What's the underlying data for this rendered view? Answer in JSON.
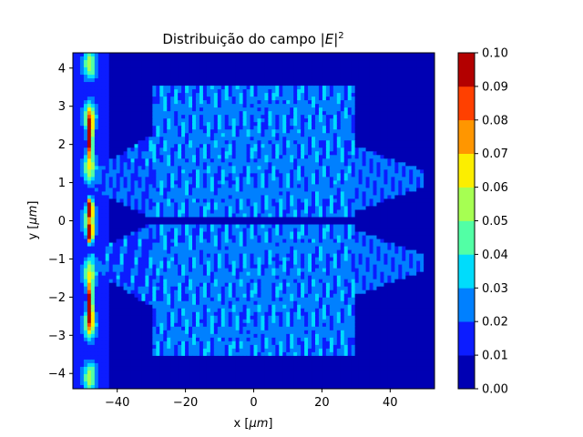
{
  "chart_data": {
    "type": "heatmap",
    "title": "Distribuição do campo |E|²",
    "title_main": "Distribuição do campo ",
    "title_var": "E",
    "title_exp": "2",
    "xlabel": "x [μm]",
    "xlabel_main": "x [",
    "xlabel_unit": "μm",
    "xlabel_close": "]",
    "ylabel": "y [μm]",
    "ylabel_main": "y [",
    "ylabel_unit": "μm",
    "ylabel_close": "]",
    "xlim": [
      -53,
      53
    ],
    "ylim": [
      -4.4,
      4.4
    ],
    "x_ticks": [
      -40,
      -20,
      0,
      20,
      40
    ],
    "x_tick_labels": [
      "−40",
      "−20",
      "0",
      "20",
      "40"
    ],
    "y_ticks": [
      -4,
      -3,
      -2,
      -1,
      0,
      1,
      2,
      3,
      4
    ],
    "y_tick_labels": [
      "−4",
      "−3",
      "−2",
      "−1",
      "0",
      "1",
      "2",
      "3",
      "4"
    ],
    "colorbar": {
      "vmin": 0.0,
      "vmax": 0.1,
      "levels": [
        0.0,
        0.01,
        0.02,
        0.03,
        0.04,
        0.05,
        0.06,
        0.07,
        0.08,
        0.09,
        0.1
      ],
      "tick_labels": [
        "0.00",
        "0.01",
        "0.02",
        "0.03",
        "0.04",
        "0.05",
        "0.06",
        "0.07",
        "0.08",
        "0.09",
        "0.10"
      ],
      "colormap": "jet",
      "colors": [
        "#0000b3",
        "#0c1cff",
        "#0080ff",
        "#00dcfc",
        "#52ffa5",
        "#a6ff52",
        "#fcee00",
        "#ff9600",
        "#ff4000",
        "#b30000"
      ]
    },
    "field_structures": {
      "source_column_x": -48,
      "waveguide_region": {
        "x": [
          -30,
          30
        ],
        "y": [
          -3.5,
          3.5
        ]
      },
      "input_taper_x": [
        -48,
        -30
      ],
      "output_taper_x": [
        30,
        50
      ],
      "grid": false
    }
  }
}
